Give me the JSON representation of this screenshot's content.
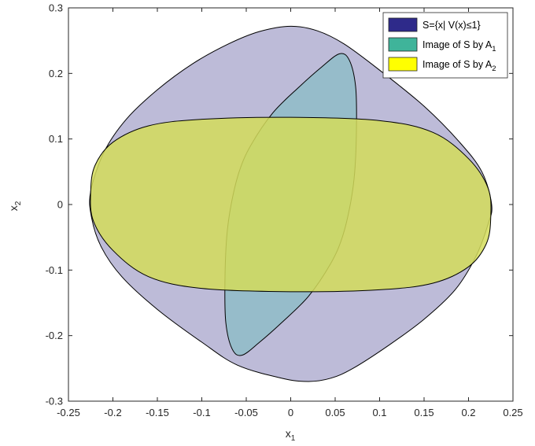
{
  "chart_data": {
    "type": "area",
    "xlabel": "x",
    "xlabel_sub": "1",
    "ylabel": "x",
    "ylabel_sub": "2",
    "xlim": [
      -0.25,
      0.25
    ],
    "ylim": [
      -0.3,
      0.3
    ],
    "xticks": [
      -0.25,
      -0.2,
      -0.15,
      -0.1,
      -0.05,
      0,
      0.05,
      0.1,
      0.15,
      0.2,
      0.25
    ],
    "xtick_labels": [
      "-0.25",
      "-0.2",
      "-0.15",
      "-0.1",
      "-0.05",
      "0",
      "0.05",
      "0.1",
      "0.15",
      "0.2",
      "0.25"
    ],
    "yticks": [
      -0.3,
      -0.2,
      -0.1,
      0,
      0.1,
      0.2,
      0.3
    ],
    "ytick_labels": [
      "-0.3",
      "-0.2",
      "-0.1",
      "0",
      "0.1",
      "0.2",
      "0.3"
    ],
    "grid": false,
    "legend_position": "top-right",
    "series": [
      {
        "name": "S={x| V(x)≤1}",
        "color": "#2e2a8a",
        "fill": "#bdbbd8",
        "points": [
          [
            -0.225,
            0.02
          ],
          [
            -0.21,
            0.08
          ],
          [
            -0.185,
            0.13
          ],
          [
            -0.15,
            0.175
          ],
          [
            -0.11,
            0.215
          ],
          [
            -0.07,
            0.245
          ],
          [
            -0.035,
            0.264
          ],
          [
            0.0,
            0.272
          ],
          [
            0.03,
            0.265
          ],
          [
            0.06,
            0.245
          ],
          [
            0.1,
            0.205
          ],
          [
            0.15,
            0.15
          ],
          [
            0.19,
            0.095
          ],
          [
            0.215,
            0.05
          ],
          [
            0.226,
            0.0
          ],
          [
            0.222,
            -0.03
          ],
          [
            0.208,
            -0.08
          ],
          [
            0.185,
            -0.13
          ],
          [
            0.15,
            -0.175
          ],
          [
            0.11,
            -0.215
          ],
          [
            0.07,
            -0.25
          ],
          [
            0.045,
            -0.265
          ],
          [
            0.02,
            -0.27
          ],
          [
            -0.01,
            -0.265
          ],
          [
            -0.06,
            -0.245
          ],
          [
            -0.1,
            -0.21
          ],
          [
            -0.15,
            -0.16
          ],
          [
            -0.19,
            -0.11
          ],
          [
            -0.213,
            -0.065
          ],
          [
            -0.224,
            -0.02
          ]
        ]
      },
      {
        "name": "Image of S by A",
        "name_sub": "1",
        "color": "#3fb49a",
        "fill": "#8fbcc8",
        "points": [
          [
            0.055,
            0.23
          ],
          [
            0.066,
            0.22
          ],
          [
            0.073,
            0.18
          ],
          [
            0.074,
            0.12
          ],
          [
            0.072,
            0.05
          ],
          [
            0.067,
            0.0
          ],
          [
            0.058,
            -0.05
          ],
          [
            0.045,
            -0.09
          ],
          [
            0.02,
            -0.14
          ],
          [
            -0.01,
            -0.18
          ],
          [
            -0.035,
            -0.21
          ],
          [
            -0.055,
            -0.23
          ],
          [
            -0.066,
            -0.22
          ],
          [
            -0.073,
            -0.18
          ],
          [
            -0.074,
            -0.12
          ],
          [
            -0.072,
            -0.05
          ],
          [
            -0.067,
            0.0
          ],
          [
            -0.058,
            0.05
          ],
          [
            -0.045,
            0.09
          ],
          [
            -0.02,
            0.14
          ],
          [
            0.01,
            0.18
          ],
          [
            0.035,
            0.21
          ]
        ]
      },
      {
        "name": "Image of S by A",
        "name_sub": "2",
        "color": "#ffff00",
        "fill": "#d4dc5a",
        "points": [
          [
            -0.225,
            0.02
          ],
          [
            -0.22,
            0.06
          ],
          [
            -0.2,
            0.095
          ],
          [
            -0.16,
            0.12
          ],
          [
            -0.1,
            0.13
          ],
          [
            0.0,
            0.133
          ],
          [
            0.1,
            0.128
          ],
          [
            0.16,
            0.11
          ],
          [
            0.2,
            0.07
          ],
          [
            0.222,
            0.025
          ],
          [
            0.225,
            -0.02
          ],
          [
            0.22,
            -0.06
          ],
          [
            0.2,
            -0.095
          ],
          [
            0.16,
            -0.12
          ],
          [
            0.1,
            -0.13
          ],
          [
            0.0,
            -0.133
          ],
          [
            -0.1,
            -0.128
          ],
          [
            -0.16,
            -0.11
          ],
          [
            -0.2,
            -0.07
          ],
          [
            -0.222,
            -0.025
          ]
        ]
      }
    ]
  }
}
